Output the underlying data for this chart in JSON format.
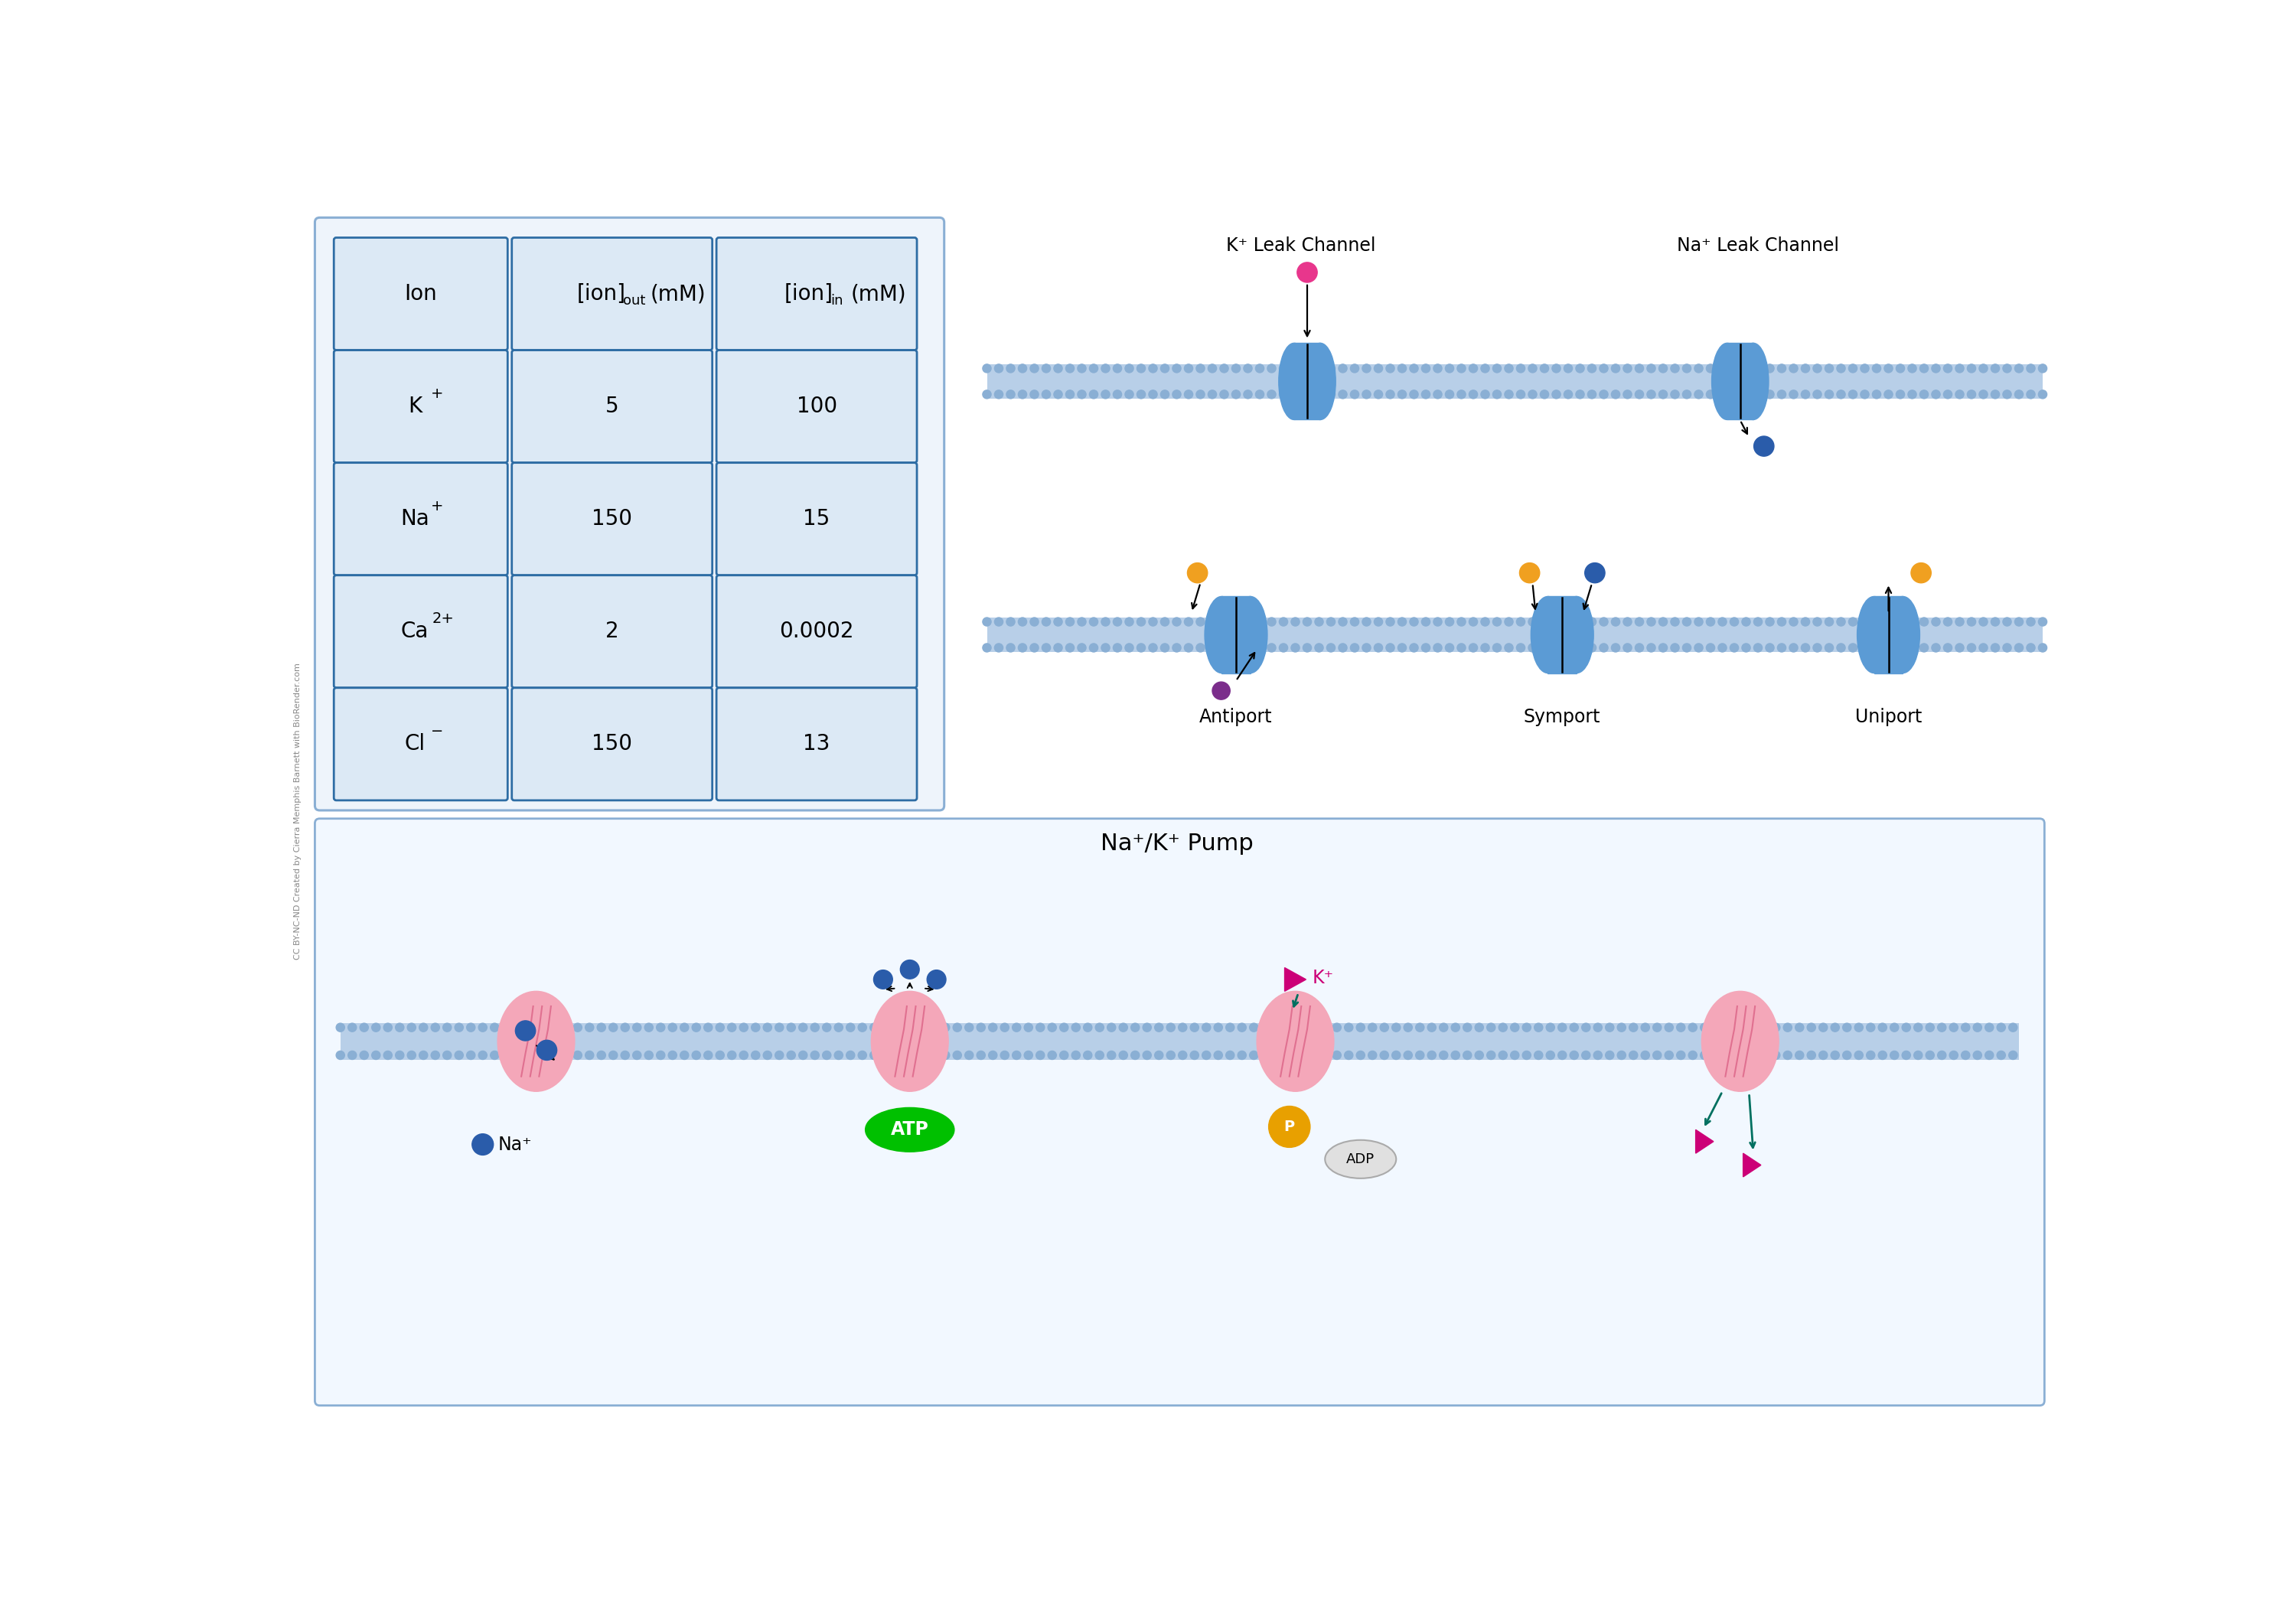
{
  "background_color": "#ffffff",
  "outer_border_color": "#8aafd4",
  "table_outer_fill": "#eef4fb",
  "cell_fill": "#dce9f5",
  "cell_border": "#2e6da4",
  "membrane_fill": "#b8cfe8",
  "membrane_dot_color": "#8aafd4",
  "protein_blue": "#5b9bd5",
  "protein_blue_dark": "#2e6da4",
  "protein_pink": "#f4a7b9",
  "protein_pink_dark": "#e07090",
  "arrow_black": "#1a1a1a",
  "dot_pink": "#e8368c",
  "dot_blue": "#2a5caa",
  "dot_orange": "#f0a020",
  "dot_purple": "#7b2d8b",
  "green_atp": "#00c000",
  "atp_text": "#ffffff",
  "p_circle": "#e8a000",
  "adp_fill": "#e0e0e0",
  "k_triangle": "#cc0077",
  "teal_arrow": "#007060",
  "sidebar_color": "#888888",
  "table": {
    "ions": [
      "Ion",
      "K",
      "Na",
      "Ca",
      "Cl"
    ],
    "ion_sups": [
      "",
      "+",
      "+",
      "2+",
      "-"
    ],
    "out_conc": [
      "5",
      "150",
      "2",
      "150"
    ],
    "in_conc": [
      "100",
      "15",
      "0.0002",
      "13"
    ],
    "out_header": "[ion]",
    "out_sub": "out",
    "out_unit": "(mM)",
    "in_header": "[ion]",
    "in_sub": "in",
    "in_unit": "(mM)"
  },
  "leak_labels": [
    "K⁺ Leak Channel",
    "Na⁺ Leak Channel"
  ],
  "transport_labels": [
    "Antiport",
    "Symport",
    "Uniport"
  ],
  "pump_label": "Na⁺/K⁺ Pump",
  "atp_label": "ATP",
  "adp_label": "ADP",
  "k_label": "K⁺",
  "na_label": "Na⁺",
  "sidebar_text": "CC BY-NC-ND Created by Cierra Memphis Barnett with BioRender.com",
  "fs_large": 20,
  "fs_medium": 17,
  "fs_small": 14,
  "fs_tiny": 10,
  "fs_sidebar": 8
}
